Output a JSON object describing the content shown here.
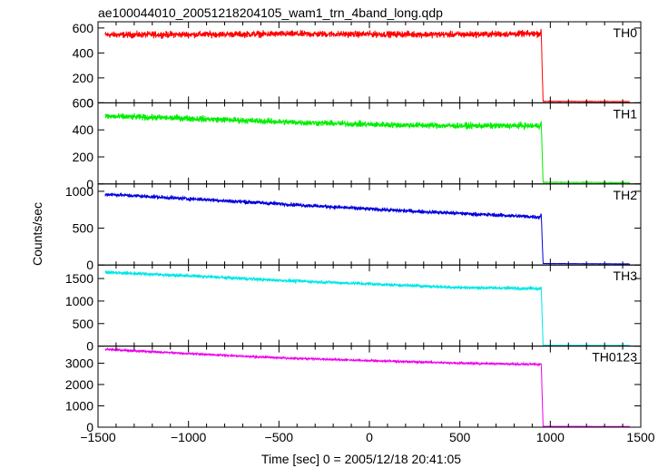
{
  "chart_data": {
    "type": "line",
    "title": "ae100044010_20051218204105_wam1_trn_4band_long.qdp",
    "xlabel": "Time [sec] 0 = 2005/12/18 20:41:05",
    "ylabel": "Counts/sec",
    "xlim": [
      -1500,
      1500
    ],
    "x_ticks": [
      -1500,
      -1000,
      -500,
      0,
      500,
      1000,
      1500
    ],
    "x_tick_labels": [
      "−1500",
      "−1000",
      "−500",
      "0",
      "500",
      "1000",
      "1500"
    ],
    "grid": false,
    "panels": [
      {
        "name": "TH0",
        "color": "#ff0000",
        "ylim": [
          0,
          650
        ],
        "y_ticks": [
          0,
          200,
          400,
          600
        ],
        "y_tick_labels": [
          "0",
          "200",
          "400",
          "600"
        ],
        "noise": 25,
        "x": [
          -1460,
          -1000,
          -500,
          0,
          500,
          940,
          950,
          955,
          960,
          1440
        ],
        "y": [
          545,
          548,
          552,
          550,
          548,
          555,
          565,
          280,
          12,
          10
        ]
      },
      {
        "name": "TH1",
        "color": "#00ee00",
        "ylim": [
          0,
          600
        ],
        "y_ticks": [
          0,
          200,
          400,
          600
        ],
        "y_tick_labels": [
          "0",
          "200",
          "400",
          "600"
        ],
        "noise": 22,
        "x": [
          -1460,
          -1000,
          -500,
          0,
          500,
          940,
          950,
          955,
          960,
          1440
        ],
        "y": [
          500,
          485,
          460,
          440,
          430,
          430,
          450,
          230,
          12,
          10
        ]
      },
      {
        "name": "TH2",
        "color": "#0000dd",
        "ylim": [
          0,
          1100
        ],
        "y_ticks": [
          0,
          500,
          1000
        ],
        "y_tick_labels": [
          "0",
          "500",
          "1000"
        ],
        "noise": 25,
        "x": [
          -1460,
          -1000,
          -500,
          0,
          500,
          940,
          950,
          955,
          960,
          1440
        ],
        "y": [
          960,
          900,
          830,
          760,
          700,
          650,
          690,
          350,
          20,
          15
        ]
      },
      {
        "name": "TH3",
        "color": "#00e6e6",
        "ylim": [
          0,
          1800
        ],
        "y_ticks": [
          0,
          500,
          1000,
          1500
        ],
        "y_tick_labels": [
          "0",
          "500",
          "1000",
          "1500"
        ],
        "noise": 35,
        "x": [
          -1460,
          -1000,
          -500,
          0,
          500,
          940,
          950,
          955,
          960,
          1440
        ],
        "y": [
          1640,
          1560,
          1460,
          1380,
          1300,
          1280,
          1300,
          650,
          20,
          15
        ]
      },
      {
        "name": "TH0123",
        "color": "#ee00ee",
        "ylim": [
          0,
          3800
        ],
        "y_ticks": [
          0,
          1000,
          2000,
          3000
        ],
        "y_tick_labels": [
          "0",
          "1000",
          "2000",
          "3000"
        ],
        "noise": 45,
        "x": [
          -1460,
          -1000,
          -500,
          0,
          500,
          940,
          950,
          955,
          960,
          1440
        ],
        "y": [
          3650,
          3450,
          3250,
          3120,
          3000,
          2940,
          2980,
          1500,
          40,
          30
        ]
      }
    ]
  }
}
